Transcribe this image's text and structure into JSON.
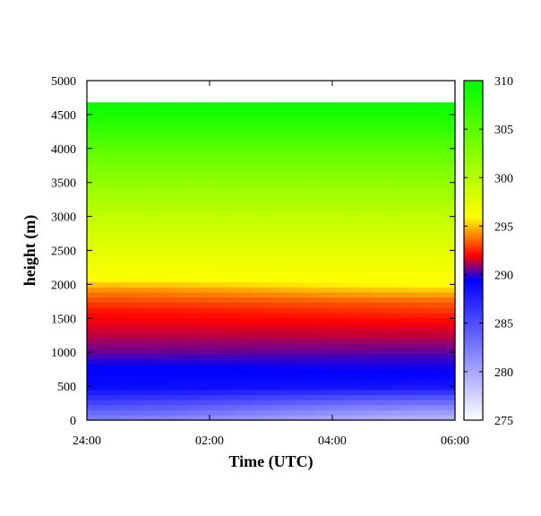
{
  "chart_data": {
    "type": "heatmap",
    "title": "",
    "xlabel": "Time (UTC)",
    "ylabel": "height (m)",
    "x_ticks": [
      "24:00",
      "02:00",
      "04:00",
      "06:00"
    ],
    "x_range_hours": [
      0,
      6
    ],
    "y_ticks": [
      0,
      500,
      1000,
      1500,
      2000,
      2500,
      3000,
      3500,
      4000,
      4500,
      5000
    ],
    "ylim": [
      0,
      5000
    ],
    "data_top_height": 4680,
    "colorbar": {
      "ticks": [
        275,
        280,
        285,
        290,
        295,
        300,
        305,
        310
      ],
      "range": [
        275,
        310
      ],
      "stops": [
        {
          "value": 275,
          "color": "#ffffff"
        },
        {
          "value": 289.5,
          "color": "#0000ff"
        },
        {
          "value": 292,
          "color": "#ff0000"
        },
        {
          "value": 296,
          "color": "#ffff00"
        },
        {
          "value": 310,
          "color": "#00ff00"
        }
      ]
    },
    "profile_start": [
      {
        "height": 0,
        "value": 282
      },
      {
        "height": 150,
        "value": 284
      },
      {
        "height": 350,
        "value": 287
      },
      {
        "height": 500,
        "value": 289
      },
      {
        "height": 800,
        "value": 289.5
      },
      {
        "height": 1000,
        "value": 290.5
      },
      {
        "height": 1300,
        "value": 291.5
      },
      {
        "height": 1600,
        "value": 292.2
      },
      {
        "height": 1900,
        "value": 294
      },
      {
        "height": 2100,
        "value": 296.2
      },
      {
        "height": 2500,
        "value": 297.5
      },
      {
        "height": 3000,
        "value": 299.5
      },
      {
        "height": 3500,
        "value": 302
      },
      {
        "height": 4000,
        "value": 305
      },
      {
        "height": 4400,
        "value": 308
      },
      {
        "height": 4680,
        "value": 309.5
      }
    ],
    "profile_end": [
      {
        "height": 0,
        "value": 279
      },
      {
        "height": 150,
        "value": 281
      },
      {
        "height": 350,
        "value": 285
      },
      {
        "height": 500,
        "value": 288.5
      },
      {
        "height": 700,
        "value": 289.5
      },
      {
        "height": 900,
        "value": 290
      },
      {
        "height": 1200,
        "value": 291.2
      },
      {
        "height": 1450,
        "value": 292
      },
      {
        "height": 1750,
        "value": 293.5
      },
      {
        "height": 2000,
        "value": 296
      },
      {
        "height": 2500,
        "value": 297.5
      },
      {
        "height": 3000,
        "value": 299.5
      },
      {
        "height": 3500,
        "value": 302
      },
      {
        "height": 4000,
        "value": 305
      },
      {
        "height": 4400,
        "value": 308
      },
      {
        "height": 4680,
        "value": 309.5
      }
    ]
  }
}
